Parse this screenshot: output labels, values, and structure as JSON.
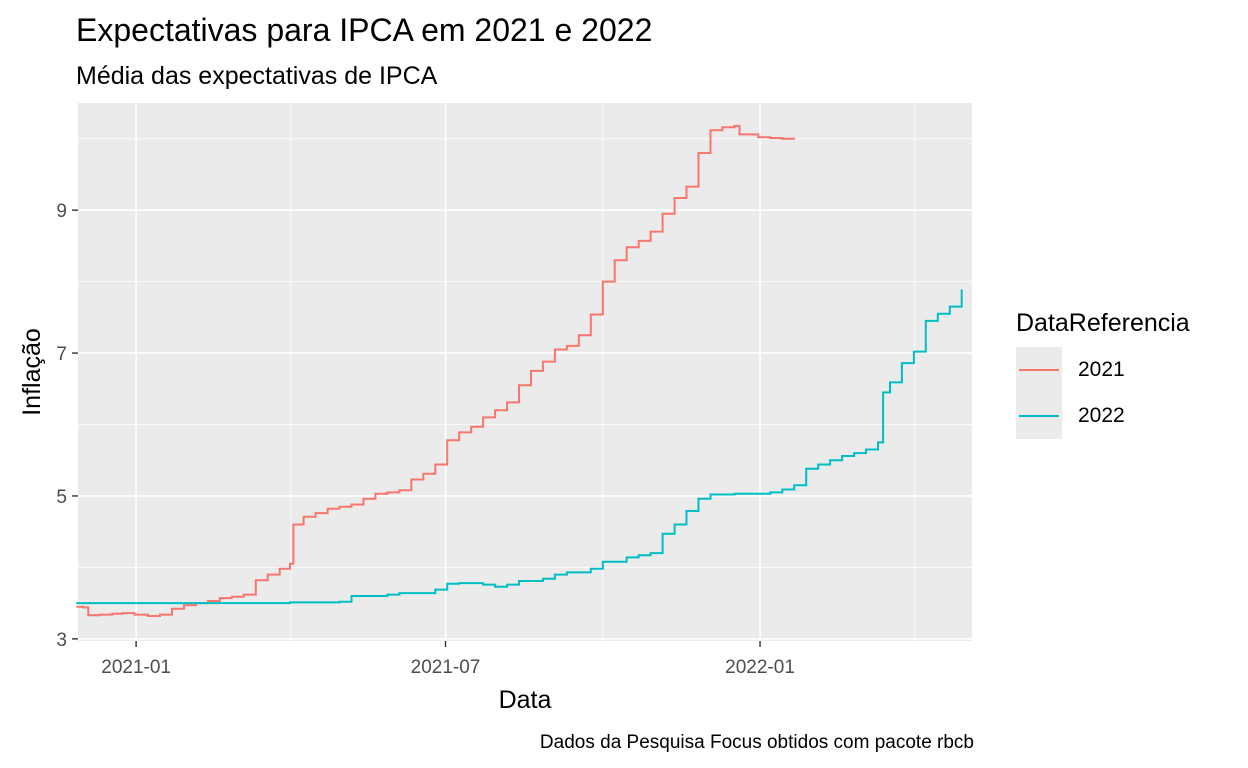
{
  "chart_data": {
    "type": "line",
    "title": "Expectativas para IPCA em 2021 e 2022",
    "subtitle": "Média das expectativas de IPCA",
    "xlabel": "Data",
    "ylabel": "Inflação",
    "caption": "Dados da Pesquisa Focus obtidos com pacote rbcb",
    "legend_title": "DataReferencia",
    "legend_position": "right",
    "grid": true,
    "xlim": [
      "2020-11-28",
      "2022-05-05"
    ],
    "ylim": [
      2.97,
      10.5
    ],
    "x_ticks": [
      "2021-01-01",
      "2021-07-01",
      "2022-01-01"
    ],
    "x_tick_labels": [
      "2021-01",
      "2021-07",
      "2022-01"
    ],
    "y_ticks": [
      3,
      5,
      7,
      9
    ],
    "y_tick_labels": [
      "3",
      "5",
      "7",
      "9"
    ],
    "series": [
      {
        "name": "2021",
        "color": "#F8766D",
        "points": [
          [
            "2020-11-27",
            3.45
          ],
          [
            "2020-12-01",
            3.44
          ],
          [
            "2020-12-04",
            3.33
          ],
          [
            "2020-12-11",
            3.34
          ],
          [
            "2020-12-18",
            3.35
          ],
          [
            "2020-12-24",
            3.36
          ],
          [
            "2020-12-31",
            3.34
          ],
          [
            "2021-01-08",
            3.32
          ],
          [
            "2021-01-15",
            3.34
          ],
          [
            "2021-01-22",
            3.42
          ],
          [
            "2021-01-29",
            3.47
          ],
          [
            "2021-02-05",
            3.5
          ],
          [
            "2021-02-12",
            3.53
          ],
          [
            "2021-02-19",
            3.57
          ],
          [
            "2021-02-26",
            3.59
          ],
          [
            "2021-03-05",
            3.62
          ],
          [
            "2021-03-12",
            3.82
          ],
          [
            "2021-03-19",
            3.9
          ],
          [
            "2021-03-26",
            3.98
          ],
          [
            "2021-04-01",
            4.05
          ],
          [
            "2021-04-03",
            4.6
          ],
          [
            "2021-04-09",
            4.71
          ],
          [
            "2021-04-16",
            4.76
          ],
          [
            "2021-04-23",
            4.82
          ],
          [
            "2021-04-30",
            4.85
          ],
          [
            "2021-05-07",
            4.88
          ],
          [
            "2021-05-14",
            4.96
          ],
          [
            "2021-05-21",
            5.03
          ],
          [
            "2021-05-28",
            5.05
          ],
          [
            "2021-06-04",
            5.08
          ],
          [
            "2021-06-11",
            5.23
          ],
          [
            "2021-06-18",
            5.31
          ],
          [
            "2021-06-25",
            5.44
          ],
          [
            "2021-07-02",
            5.78
          ],
          [
            "2021-07-09",
            5.89
          ],
          [
            "2021-07-16",
            5.97
          ],
          [
            "2021-07-23",
            6.1
          ],
          [
            "2021-07-30",
            6.2
          ],
          [
            "2021-08-06",
            6.31
          ],
          [
            "2021-08-13",
            6.55
          ],
          [
            "2021-08-20",
            6.75
          ],
          [
            "2021-08-27",
            6.88
          ],
          [
            "2021-09-03",
            7.05
          ],
          [
            "2021-09-10",
            7.1
          ],
          [
            "2021-09-17",
            7.25
          ],
          [
            "2021-09-24",
            7.54
          ],
          [
            "2021-10-01",
            8.0
          ],
          [
            "2021-10-08",
            8.3
          ],
          [
            "2021-10-15",
            8.48
          ],
          [
            "2021-10-22",
            8.57
          ],
          [
            "2021-10-29",
            8.7
          ],
          [
            "2021-11-05",
            8.95
          ],
          [
            "2021-11-12",
            9.17
          ],
          [
            "2021-11-19",
            9.33
          ],
          [
            "2021-11-26",
            9.8
          ],
          [
            "2021-12-03",
            10.12
          ],
          [
            "2021-12-10",
            10.16
          ],
          [
            "2021-12-17",
            10.18
          ],
          [
            "2021-12-20",
            10.06
          ],
          [
            "2021-12-31",
            10.02
          ],
          [
            "2022-01-07",
            10.01
          ],
          [
            "2022-01-14",
            10.0
          ],
          [
            "2022-01-21",
            9.99
          ]
        ]
      },
      {
        "name": "2022",
        "color": "#00BFC4",
        "points": [
          [
            "2020-11-27",
            3.5
          ],
          [
            "2021-01-15",
            3.5
          ],
          [
            "2021-03-01",
            3.5
          ],
          [
            "2021-04-01",
            3.51
          ],
          [
            "2021-04-30",
            3.52
          ],
          [
            "2021-05-07",
            3.6
          ],
          [
            "2021-05-28",
            3.62
          ],
          [
            "2021-06-04",
            3.64
          ],
          [
            "2021-06-25",
            3.69
          ],
          [
            "2021-07-02",
            3.77
          ],
          [
            "2021-07-09",
            3.78
          ],
          [
            "2021-07-23",
            3.76
          ],
          [
            "2021-07-30",
            3.73
          ],
          [
            "2021-08-06",
            3.76
          ],
          [
            "2021-08-13",
            3.81
          ],
          [
            "2021-08-27",
            3.84
          ],
          [
            "2021-09-03",
            3.9
          ],
          [
            "2021-09-10",
            3.93
          ],
          [
            "2021-09-24",
            3.98
          ],
          [
            "2021-10-01",
            4.08
          ],
          [
            "2021-10-15",
            4.14
          ],
          [
            "2021-10-22",
            4.17
          ],
          [
            "2021-10-29",
            4.2
          ],
          [
            "2021-11-05",
            4.47
          ],
          [
            "2021-11-12",
            4.6
          ],
          [
            "2021-11-19",
            4.79
          ],
          [
            "2021-11-26",
            4.96
          ],
          [
            "2021-12-03",
            5.02
          ],
          [
            "2021-12-17",
            5.03
          ],
          [
            "2021-12-31",
            5.03
          ],
          [
            "2022-01-07",
            5.05
          ],
          [
            "2022-01-14",
            5.09
          ],
          [
            "2022-01-21",
            5.15
          ],
          [
            "2022-01-28",
            5.38
          ],
          [
            "2022-02-04",
            5.44
          ],
          [
            "2022-02-11",
            5.5
          ],
          [
            "2022-02-18",
            5.56
          ],
          [
            "2022-02-25",
            5.6
          ],
          [
            "2022-03-04",
            5.65
          ],
          [
            "2022-03-11",
            5.75
          ],
          [
            "2022-03-14",
            6.45
          ],
          [
            "2022-03-18",
            6.59
          ],
          [
            "2022-03-25",
            6.86
          ],
          [
            "2022-04-01",
            7.02
          ],
          [
            "2022-04-08",
            7.45
          ],
          [
            "2022-04-15",
            7.55
          ],
          [
            "2022-04-22",
            7.65
          ],
          [
            "2022-04-29",
            7.89
          ]
        ]
      }
    ]
  }
}
